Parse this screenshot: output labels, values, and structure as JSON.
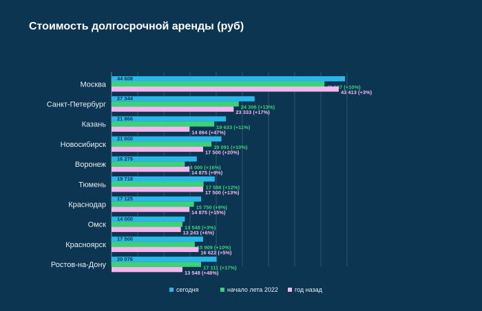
{
  "chart_data": {
    "type": "bar",
    "orientation": "horizontal",
    "title": "Стоимость долгосрочной аренды (руб)",
    "categories": [
      "Москва",
      "Санкт-Петербург",
      "Казань",
      "Новосибирск",
      "Воронеж",
      "Тюмень",
      "Краснодар",
      "Омск",
      "Красноярск",
      "Ростов-на-Дону"
    ],
    "series": [
      {
        "name": "сегодня",
        "color": "#29b6e8",
        "values": [
          44608,
          27344,
          21866,
          21000,
          16279,
          19718,
          17125,
          14000,
          17500,
          20076
        ],
        "labels": [
          "44 608",
          "27 344",
          "21 866",
          "21 000",
          "16 279",
          "19 718",
          "17 125",
          "14 000",
          "17 500",
          "20 076"
        ],
        "label_color": "#0b3550"
      },
      {
        "name": "начало лета 2022",
        "color": "#3dd17a",
        "values": [
          40687,
          24306,
          19633,
          19091,
          14000,
          17588,
          15750,
          13548,
          15909,
          17111
        ],
        "labels": [
          "40 687 (+10%)",
          "24 306 (+13%)",
          "19 633 (+11%)",
          "19 091 (+10%)",
          "14 000 (+16%)",
          "17 588 (+12%)",
          "15 750 (+9%)",
          "13 548 (+3%)",
          "15 909 (+10%)",
          "17 111 (+17%)"
        ],
        "label_color": "#3dd17a"
      },
      {
        "name": "год назад",
        "color": "#f5b8ee",
        "values": [
          43413,
          23333,
          14894,
          17500,
          14875,
          17500,
          14875,
          13243,
          16622,
          13548
        ],
        "labels": [
          "43 413 (+3%)",
          "23 333 (+17%)",
          "14 894 (+47%)",
          "17 500 (+20%)",
          "14 875 (+9%)",
          "17 500 (+13%)",
          "14 875 (+15%)",
          "13 243 (+6%)",
          "16 622 (+5%)",
          "13 548 (+48%)"
        ],
        "label_color": "#f5b8ee"
      }
    ],
    "xlim": [
      0,
      45000
    ],
    "grid": true,
    "legend_position": "bottom"
  }
}
